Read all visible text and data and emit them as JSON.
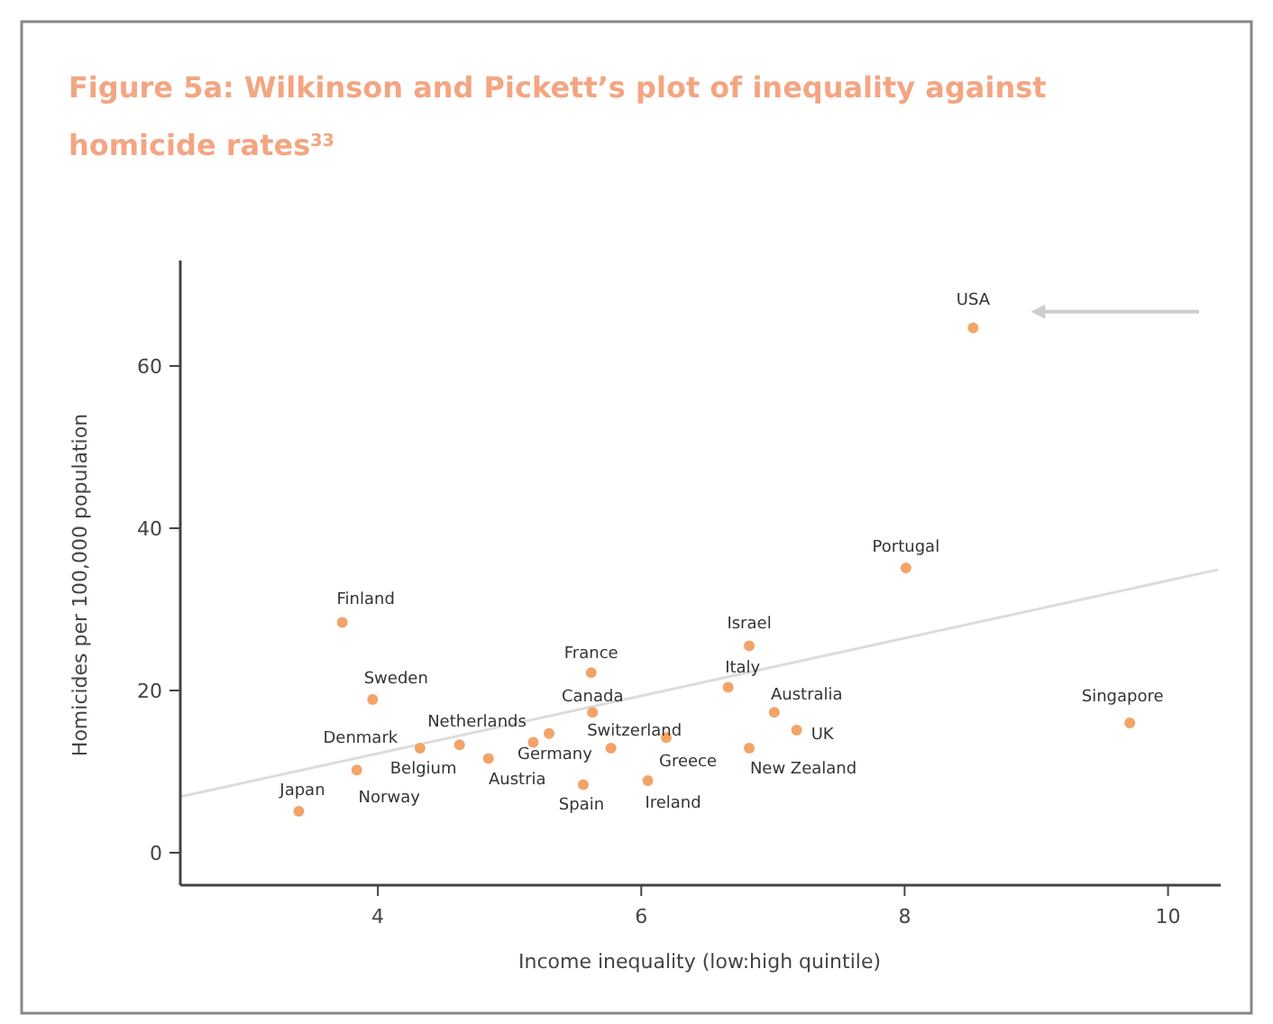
{
  "chart_data": {
    "type": "scatter",
    "title": "Figure 5a: Wilkinson and Pickett’s plot of inequality against homicide rates$^{33}$",
    "xlabel": "Income inequality (low:high quintile)",
    "ylabel": "Homicides per 100,000 population",
    "xlim": [
      2.5,
      10.4
    ],
    "ylim": [
      -4,
      73
    ],
    "xticks": [
      4,
      6,
      8,
      10
    ],
    "yticks": [
      0,
      20,
      40,
      60
    ],
    "grid": false,
    "series": [
      {
        "type": "line",
        "color": "#dcdcdc",
        "x": [
          2.5,
          10.38
        ],
        "values": [
          6.9,
          34.9
        ],
        "line_style": "solid"
      },
      {
        "marker": "circle",
        "color": "#f2a468",
        "x": [
          3.4,
          3.84,
          3.73,
          3.96,
          4.32,
          4.62,
          4.84,
          5.18,
          5.3,
          5.62,
          5.63,
          5.77,
          5.56,
          6.05,
          6.19,
          6.82,
          6.66,
          7.01,
          7.18,
          6.82,
          9.71,
          8.01,
          8.52
        ],
        "values": [
          5.1,
          10.2,
          28.4,
          18.9,
          12.9,
          13.3,
          11.6,
          13.6,
          14.7,
          22.2,
          17.3,
          12.9,
          8.4,
          8.9,
          14.2,
          25.5,
          20.4,
          17.3,
          15.1,
          12.9,
          16.0,
          35.1,
          64.7
        ]
      }
    ],
    "annotations": [
      {
        "text": "Japan",
        "x": 3.4,
        "y": 5.1
      },
      {
        "text": "Norway",
        "x": 3.84,
        "y": 10.2
      },
      {
        "text": "Finland",
        "x": 3.73,
        "y": 28.4
      },
      {
        "text": "Sweden",
        "x": 3.96,
        "y": 18.9
      },
      {
        "text": "Denmark",
        "x": 4.32,
        "y": 12.9
      },
      {
        "text": "Belgium",
        "x": 4.62,
        "y": 13.3
      },
      {
        "text": "Austria",
        "x": 4.84,
        "y": 11.6
      },
      {
        "text": "Germany",
        "x": 5.18,
        "y": 13.6
      },
      {
        "text": "Netherlands",
        "x": 5.3,
        "y": 14.7
      },
      {
        "text": "France",
        "x": 5.62,
        "y": 22.2
      },
      {
        "text": "Canada",
        "x": 5.63,
        "y": 17.3
      },
      {
        "text": "Switzerland",
        "x": 5.77,
        "y": 12.9
      },
      {
        "text": "Spain",
        "x": 5.56,
        "y": 8.4
      },
      {
        "text": "Ireland",
        "x": 6.05,
        "y": 8.9
      },
      {
        "text": "Greece",
        "x": 6.19,
        "y": 14.2
      },
      {
        "text": "Israel",
        "x": 6.82,
        "y": 25.5
      },
      {
        "text": "Italy",
        "x": 6.66,
        "y": 20.4
      },
      {
        "text": "Australia",
        "x": 7.01,
        "y": 17.3
      },
      {
        "text": "UK",
        "x": 7.18,
        "y": 15.1
      },
      {
        "text": "New Zealand",
        "x": 6.82,
        "y": 12.9
      },
      {
        "text": "Singapore",
        "x": 9.71,
        "y": 16.0
      },
      {
        "text": "Portugal",
        "x": 8.01,
        "y": 35.1
      },
      {
        "text": "USA",
        "x": 8.52,
        "y": 64.7
      }
    ]
  }
}
